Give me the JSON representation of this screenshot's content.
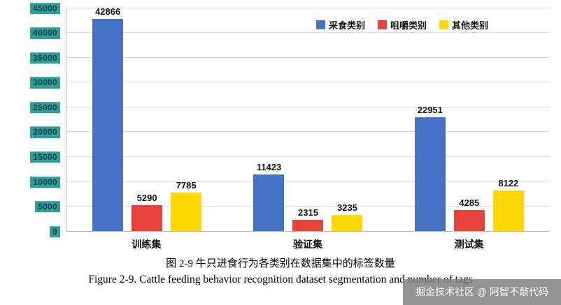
{
  "figure": {
    "caption_zh": "图 2-9 牛只进食行为各类别在数据集中的标签数量",
    "caption_en": "Figure 2-9. Cattle feeding behavior recognition dataset segmentation and number of tags"
  },
  "watermark": {
    "text": "掘金技术社区 @ 阿智不敲代码"
  },
  "chart_data": {
    "type": "bar",
    "categories": [
      "训练集",
      "验证集",
      "测试集"
    ],
    "series": [
      {
        "name": "采食类别",
        "color": "#4472C4",
        "values": [
          42866,
          11423,
          22951
        ]
      },
      {
        "name": "咀嚼类别",
        "color": "#E8433A",
        "values": [
          5290,
          2315,
          4285
        ]
      },
      {
        "name": "其他类别",
        "color": "#FFD800",
        "values": [
          7785,
          3235,
          8122
        ]
      }
    ],
    "title": "",
    "xlabel": "",
    "ylabel": "",
    "ylim": [
      0,
      45000
    ],
    "ytick_step": 5000,
    "grid": true,
    "legend_position": "top-right",
    "ytick_highlight_color": "#2EA191",
    "ytick_text_color": "#0F3A5F",
    "gridline_color": "#dcdcdc"
  }
}
